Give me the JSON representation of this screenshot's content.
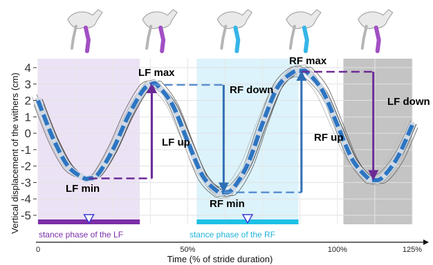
{
  "chart_data": {
    "type": "line",
    "xlabel": "Time (% of stride duration)",
    "ylabel": "Vertical displacement of the withers (cm)",
    "xlim": [
      0,
      125
    ],
    "ylim": [
      -5.5,
      4.5
    ],
    "xticks": [
      "0",
      "50%",
      "100%",
      "125%"
    ],
    "yticks": [
      "4",
      "3",
      "2",
      "1",
      "0",
      "-1",
      "-2",
      "-3",
      "-4",
      "-5"
    ],
    "grid": true,
    "series": [
      {
        "color": "#2d75c2",
        "style": "dashed",
        "x": [
          0,
          5,
          10,
          15,
          17,
          20,
          25,
          30,
          35,
          38,
          40,
          45,
          50,
          55,
          60,
          62,
          65,
          70,
          75,
          80,
          85,
          88,
          90,
          95,
          100,
          105,
          110,
          112,
          115,
          120,
          125
        ],
        "y": [
          2.0,
          -0.3,
          -2.0,
          -2.7,
          -2.75,
          -2.5,
          -1.0,
          1.0,
          2.6,
          3.0,
          2.9,
          1.7,
          -0.5,
          -2.6,
          -3.55,
          -3.6,
          -3.4,
          -1.9,
          0.6,
          2.8,
          3.7,
          3.8,
          3.7,
          2.6,
          0.5,
          -1.6,
          -2.7,
          -2.85,
          -2.7,
          -1.5,
          0.5
        ]
      }
    ],
    "phases": [
      {
        "label": "stance phase of the LF",
        "x_start": 0,
        "x_end": 34,
        "color": "#ece2f5",
        "bar_color": "#7b2ea8"
      },
      {
        "label": "stance phase of the RF",
        "x_start": 53,
        "x_end": 87,
        "color": "#dcf3fb",
        "bar_color": "#1ec0e6"
      },
      {
        "label": "",
        "x_start": 102,
        "x_end": 125,
        "color": "#c4c4c4",
        "bar_color": "#c4c4c4"
      }
    ],
    "annotations": [
      {
        "text": "LF max",
        "color": "#6b2a96"
      },
      {
        "text": "LF up",
        "color": "#6b2a96"
      },
      {
        "text": "LF min",
        "color": "#6b2a96"
      },
      {
        "text": "LF down",
        "color": "#6b2a96"
      },
      {
        "text": "RF max",
        "color": "#2d6fb5"
      },
      {
        "text": "RF down",
        "color": "#2d6fb5"
      },
      {
        "text": "RF up",
        "color": "#2d6fb5"
      },
      {
        "text": "RF min",
        "color": "#2d6fb5"
      }
    ],
    "colors": {
      "lf": "#6b2a96",
      "rf": "#2d6fb5",
      "mean_line": "#2d75c2",
      "trace": "#444444"
    }
  }
}
